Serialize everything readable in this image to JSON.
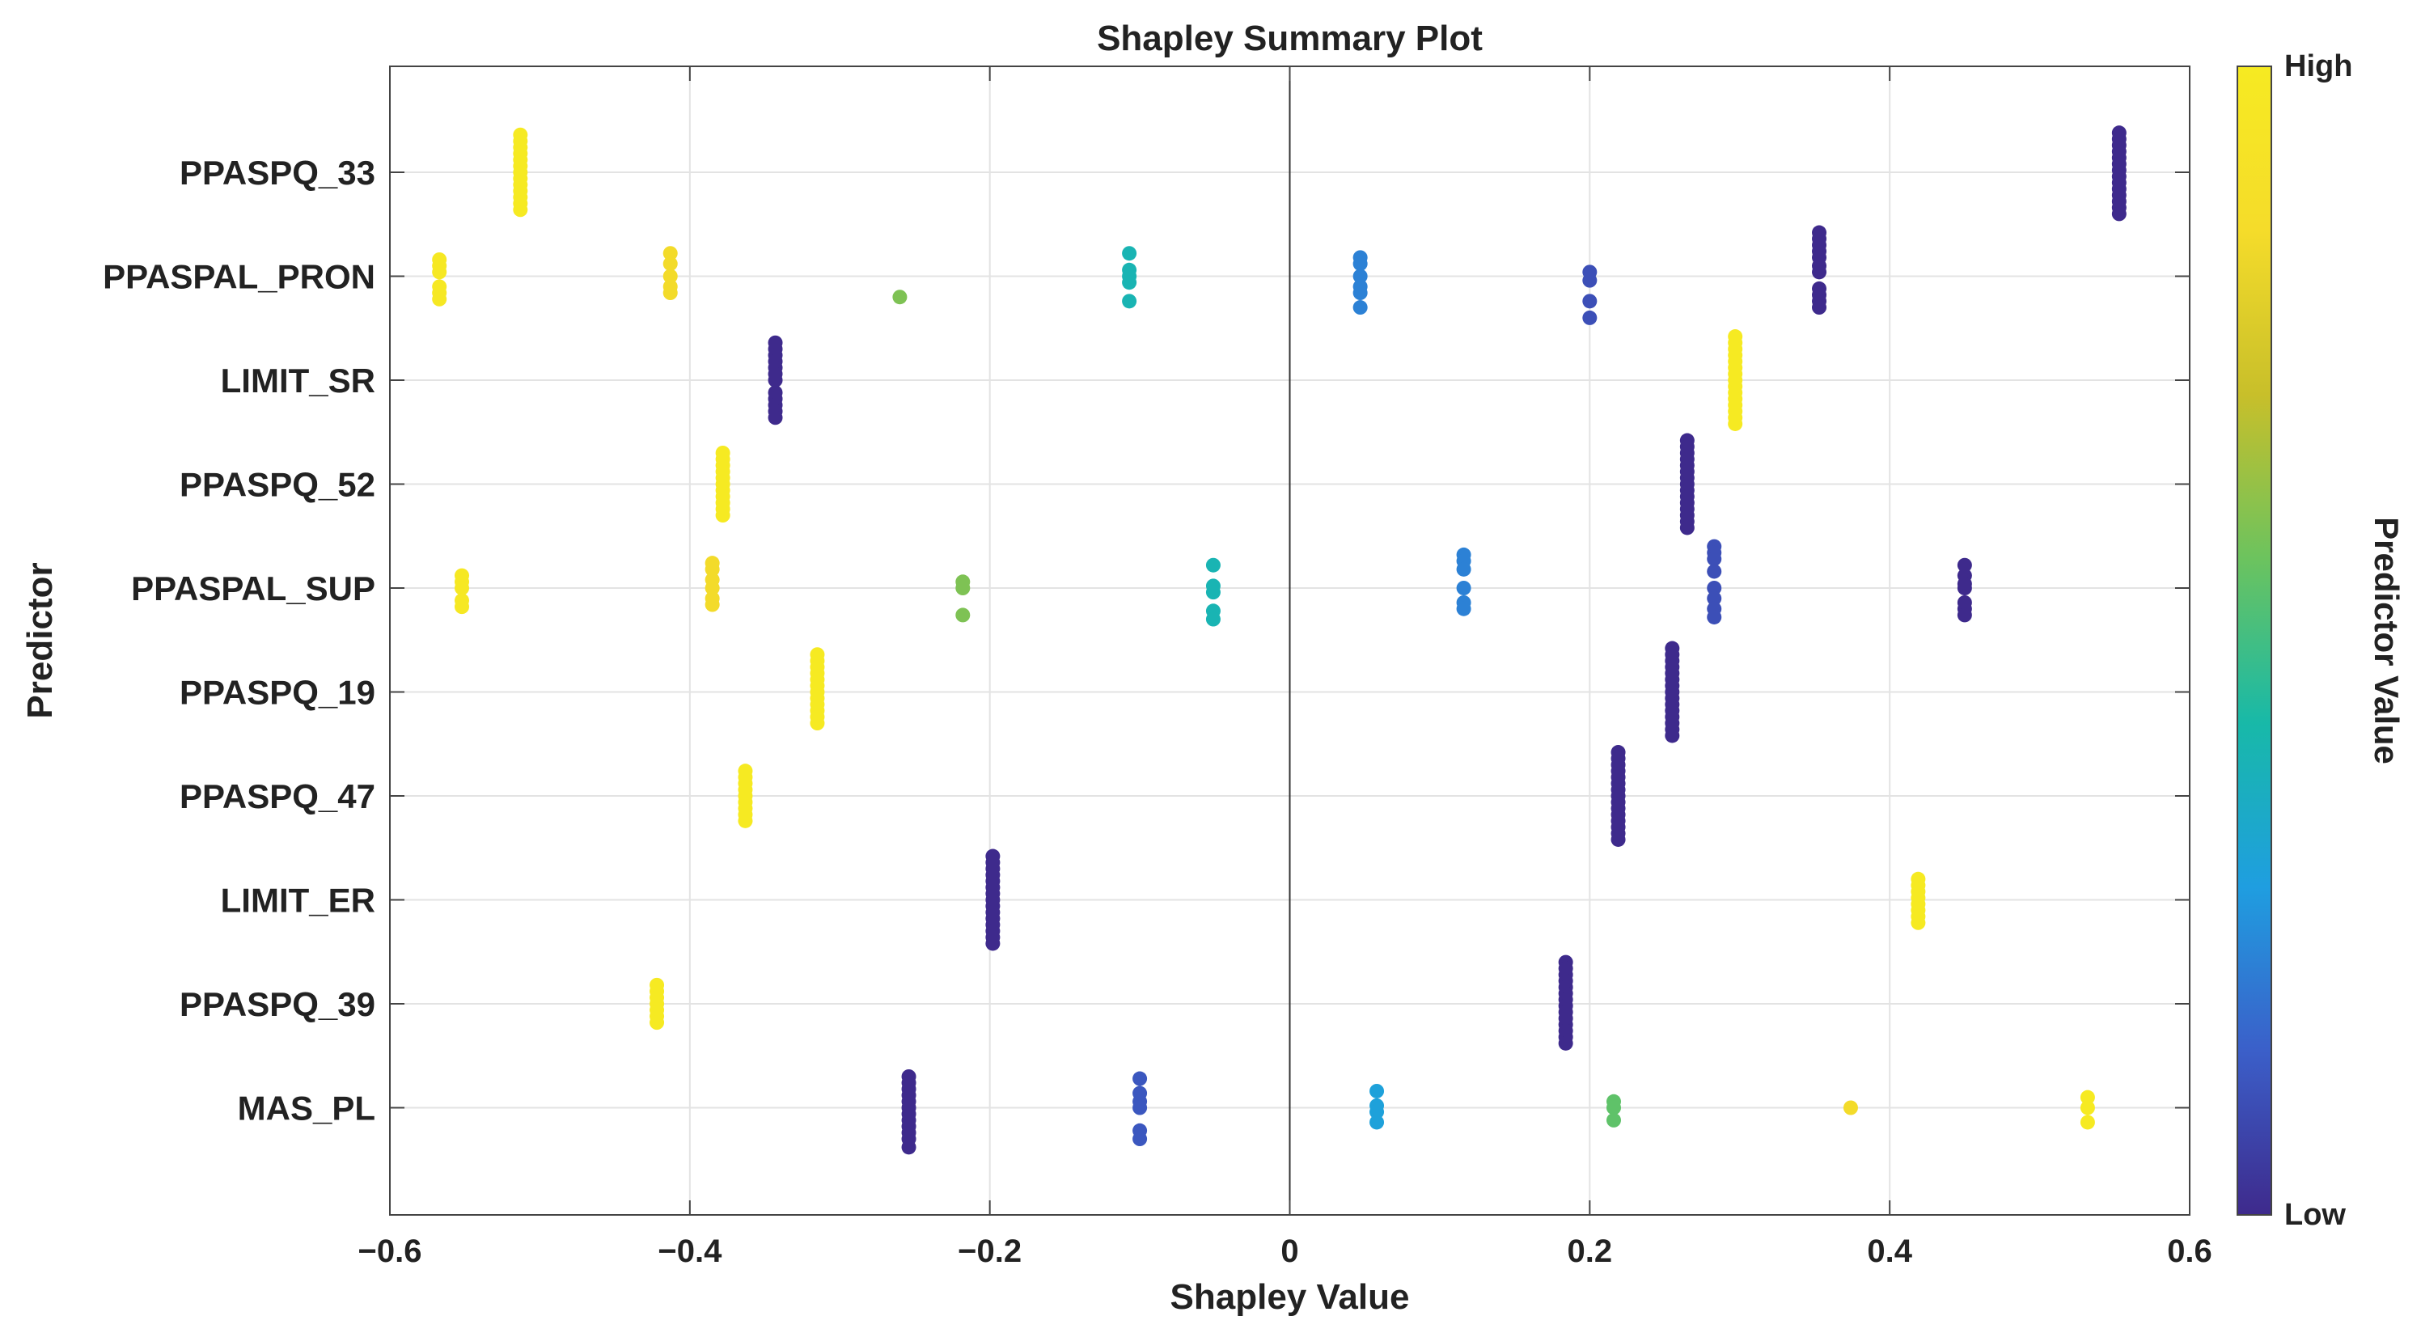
{
  "chart_data": {
    "type": "scatter",
    "title": "Shapley Summary Plot",
    "xlabel": "Shapley Value",
    "ylabel": "Predictor",
    "xlim": [
      -0.6,
      0.6
    ],
    "x_ticks": [
      -0.6,
      -0.4,
      -0.2,
      0,
      0.2,
      0.4,
      0.6
    ],
    "x_tick_labels": [
      "−0.6",
      "−0.4",
      "−0.2",
      "0",
      "0.2",
      "0.4",
      "0.6"
    ],
    "grid": true,
    "colorbar": {
      "label": "Predictor Value",
      "high_label": "High",
      "low_label": "Low",
      "colormap": [
        "#3e2a8c",
        "#3b5fc9",
        "#1f9ee0",
        "#18b9a8",
        "#6cc35e",
        "#c8bf2a",
        "#f5dc2a",
        "#f6ea22"
      ]
    },
    "predictors": [
      {
        "name": "PPASPQ_33",
        "clusters": [
          {
            "x": -0.513,
            "value": 1.0,
            "offsets": [
              -0.36,
              -0.3,
              -0.24,
              -0.18,
              -0.12,
              -0.06,
              0.0,
              0.06,
              0.12,
              0.18,
              0.24,
              0.3,
              0.36
            ]
          },
          {
            "x": 0.553,
            "value": 0.0,
            "offsets": [
              -0.38,
              -0.32,
              -0.26,
              -0.2,
              -0.14,
              -0.08,
              -0.02,
              0.04,
              0.1,
              0.16,
              0.22,
              0.28,
              0.34,
              0.4
            ]
          }
        ]
      },
      {
        "name": "PPASPAL_PRON",
        "clusters": [
          {
            "x": -0.567,
            "value": 0.98,
            "offsets": [
              -0.16,
              -0.1,
              -0.04,
              0.1,
              0.16,
              0.22
            ]
          },
          {
            "x": -0.413,
            "value": 0.85,
            "offsets": [
              -0.22,
              -0.12,
              0.0,
              0.1,
              0.16
            ]
          },
          {
            "x": -0.26,
            "value": 0.6,
            "offsets": [
              0.2
            ]
          },
          {
            "x": -0.107,
            "value": 0.4,
            "offsets": [
              -0.22,
              -0.06,
              0.0,
              0.06,
              0.24
            ]
          },
          {
            "x": 0.047,
            "value": 0.22,
            "offsets": [
              -0.18,
              -0.12,
              0.0,
              0.1,
              0.16,
              0.3
            ]
          },
          {
            "x": 0.2,
            "value": 0.1,
            "offsets": [
              -0.04,
              0.04,
              0.24,
              0.4
            ]
          },
          {
            "x": 0.353,
            "value": 0.0,
            "offsets": [
              -0.42,
              -0.36,
              -0.3,
              -0.24,
              -0.18,
              -0.1,
              -0.04,
              0.12,
              0.18,
              0.24,
              0.3
            ]
          }
        ]
      },
      {
        "name": "LIMIT_SR",
        "clusters": [
          {
            "x": -0.343,
            "value": 0.0,
            "offsets": [
              -0.36,
              -0.3,
              -0.24,
              -0.18,
              -0.12,
              -0.06,
              0.0,
              0.12,
              0.18,
              0.24,
              0.3,
              0.36
            ]
          },
          {
            "x": 0.297,
            "value": 1.0,
            "offsets": [
              -0.42,
              -0.36,
              -0.3,
              -0.24,
              -0.18,
              -0.12,
              -0.06,
              0.0,
              0.06,
              0.12,
              0.18,
              0.24,
              0.3,
              0.36,
              0.42
            ]
          }
        ]
      },
      {
        "name": "PPASPQ_52",
        "clusters": [
          {
            "x": -0.378,
            "value": 1.0,
            "offsets": [
              -0.3,
              -0.24,
              -0.18,
              -0.12,
              -0.06,
              0.0,
              0.06,
              0.12,
              0.18,
              0.24,
              0.3
            ]
          },
          {
            "x": 0.265,
            "value": 0.0,
            "offsets": [
              -0.42,
              -0.36,
              -0.3,
              -0.24,
              -0.18,
              -0.12,
              -0.06,
              0.0,
              0.06,
              0.12,
              0.18,
              0.24,
              0.3,
              0.36,
              0.42
            ]
          }
        ]
      },
      {
        "name": "PPASPAL_SUP",
        "clusters": [
          {
            "x": -0.552,
            "value": 0.98,
            "offsets": [
              -0.12,
              -0.06,
              0.0,
              0.12,
              0.18
            ]
          },
          {
            "x": -0.385,
            "value": 0.85,
            "offsets": [
              -0.24,
              -0.18,
              -0.08,
              0.0,
              0.1,
              0.16
            ]
          },
          {
            "x": -0.218,
            "value": 0.6,
            "offsets": [
              -0.06,
              0.0,
              0.26
            ]
          },
          {
            "x": -0.051,
            "value": 0.4,
            "offsets": [
              -0.22,
              -0.02,
              0.04,
              0.22,
              0.3
            ]
          },
          {
            "x": 0.116,
            "value": 0.22,
            "offsets": [
              -0.32,
              -0.26,
              -0.18,
              0.0,
              0.14,
              0.2
            ]
          },
          {
            "x": 0.283,
            "value": 0.1,
            "offsets": [
              -0.4,
              -0.34,
              -0.28,
              -0.16,
              0.0,
              0.1,
              0.2,
              0.28
            ]
          },
          {
            "x": 0.45,
            "value": 0.0,
            "offsets": [
              -0.22,
              -0.12,
              -0.04,
              0.0,
              0.14,
              0.2,
              0.26
            ]
          }
        ]
      },
      {
        "name": "PPASPQ_19",
        "clusters": [
          {
            "x": -0.315,
            "value": 1.0,
            "offsets": [
              -0.36,
              -0.3,
              -0.24,
              -0.18,
              -0.12,
              -0.06,
              0.0,
              0.06,
              0.12,
              0.18,
              0.24,
              0.3
            ]
          },
          {
            "x": 0.255,
            "value": 0.0,
            "offsets": [
              -0.42,
              -0.36,
              -0.3,
              -0.24,
              -0.18,
              -0.12,
              -0.06,
              0.0,
              0.06,
              0.12,
              0.18,
              0.24,
              0.3,
              0.36,
              0.42
            ]
          }
        ]
      },
      {
        "name": "PPASPQ_47",
        "clusters": [
          {
            "x": -0.363,
            "value": 1.0,
            "offsets": [
              -0.24,
              -0.18,
              -0.12,
              -0.06,
              0.0,
              0.06,
              0.12,
              0.18,
              0.24
            ]
          },
          {
            "x": 0.219,
            "value": 0.0,
            "offsets": [
              -0.42,
              -0.36,
              -0.3,
              -0.24,
              -0.18,
              -0.12,
              -0.06,
              0.0,
              0.06,
              0.12,
              0.18,
              0.24,
              0.3,
              0.36,
              0.42
            ]
          }
        ]
      },
      {
        "name": "LIMIT_ER",
        "clusters": [
          {
            "x": -0.198,
            "value": 0.0,
            "offsets": [
              -0.42,
              -0.36,
              -0.3,
              -0.24,
              -0.18,
              -0.12,
              -0.06,
              0.0,
              0.06,
              0.12,
              0.18,
              0.24,
              0.3,
              0.36,
              0.42
            ]
          },
          {
            "x": 0.419,
            "value": 1.0,
            "offsets": [
              -0.2,
              -0.14,
              -0.08,
              -0.02,
              0.04,
              0.1,
              0.16,
              0.22
            ]
          }
        ]
      },
      {
        "name": "PPASPQ_39",
        "clusters": [
          {
            "x": -0.422,
            "value": 1.0,
            "offsets": [
              -0.18,
              -0.12,
              -0.06,
              0.0,
              0.06,
              0.12,
              0.18
            ]
          },
          {
            "x": 0.184,
            "value": 0.0,
            "offsets": [
              -0.4,
              -0.34,
              -0.28,
              -0.22,
              -0.16,
              -0.1,
              -0.04,
              0.02,
              0.08,
              0.14,
              0.2,
              0.26,
              0.32,
              0.38
            ]
          }
        ]
      },
      {
        "name": "MAS_PL",
        "clusters": [
          {
            "x": -0.254,
            "value": 0.0,
            "offsets": [
              -0.3,
              -0.24,
              -0.18,
              -0.12,
              -0.06,
              0.0,
              0.06,
              0.12,
              0.18,
              0.24,
              0.3,
              0.38
            ]
          },
          {
            "x": -0.1,
            "value": 0.12,
            "offsets": [
              -0.28,
              -0.14,
              -0.06,
              0.0,
              0.22,
              0.3
            ]
          },
          {
            "x": 0.058,
            "value": 0.3,
            "offsets": [
              -0.16,
              -0.02,
              0.04,
              0.14
            ]
          },
          {
            "x": 0.216,
            "value": 0.55,
            "offsets": [
              -0.06,
              0.0,
              0.12
            ]
          },
          {
            "x": 0.374,
            "value": 0.85,
            "offsets": [
              0.0
            ]
          },
          {
            "x": 0.532,
            "value": 1.0,
            "offsets": [
              -0.1,
              0.0,
              0.14
            ]
          }
        ]
      }
    ]
  }
}
